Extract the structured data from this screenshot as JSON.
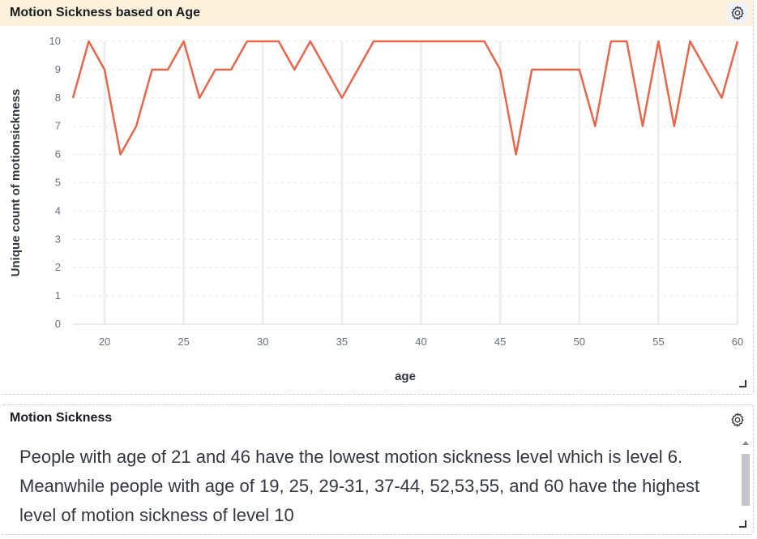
{
  "chart_panel": {
    "title": "Motion Sickness based on Age",
    "settings_icon": "gear-icon",
    "resize_icon": "resize-handle-icon"
  },
  "chart_data": {
    "type": "line",
    "title": "Motion Sickness based on Age",
    "xlabel": "age",
    "ylabel": "Unique count of motionsickness",
    "xlim": [
      18,
      60
    ],
    "ylim": [
      0,
      10
    ],
    "x_ticks": [
      20,
      25,
      30,
      35,
      40,
      45,
      50,
      55,
      60
    ],
    "y_ticks": [
      0,
      1,
      2,
      3,
      4,
      5,
      6,
      7,
      8,
      9,
      10
    ],
    "grid": true,
    "line_color": "#e7664c",
    "x": [
      18,
      19,
      20,
      21,
      22,
      23,
      24,
      25,
      26,
      27,
      28,
      29,
      30,
      31,
      32,
      33,
      34,
      35,
      36,
      37,
      38,
      39,
      40,
      41,
      42,
      43,
      44,
      45,
      46,
      47,
      48,
      49,
      50,
      51,
      52,
      53,
      54,
      55,
      56,
      57,
      58,
      59,
      60
    ],
    "values": [
      8,
      10,
      9,
      6,
      7,
      9,
      9,
      10,
      8,
      9,
      9,
      10,
      10,
      10,
      9,
      10,
      9,
      8,
      9,
      10,
      10,
      10,
      10,
      10,
      10,
      10,
      10,
      9,
      6,
      9,
      9,
      9,
      9,
      7,
      10,
      10,
      7,
      10,
      7,
      10,
      9,
      8,
      10
    ]
  },
  "text_panel": {
    "title": "Motion Sickness",
    "settings_icon": "gear-icon",
    "body": "People with age of 21 and 46 have the lowest motion sickness level which is level 6. Meanwhile people with age of 19, 25, 29-31, 37-44, 52,53,55, and 60 have the highest level of motion sickness of level 10"
  }
}
